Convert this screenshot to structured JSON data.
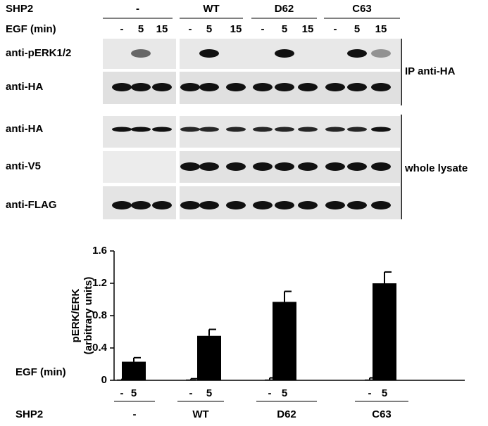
{
  "blot": {
    "group_label": "SHP2",
    "groups": [
      "-",
      "WT",
      "D62",
      "C63"
    ],
    "time_label": "EGF (min)",
    "times": [
      "-",
      "5",
      "15",
      "-",
      "5",
      "15",
      "-",
      "5",
      "15",
      "-",
      "5",
      "15"
    ],
    "rows": [
      "anti-pERK1/2",
      "anti-HA",
      "anti-HA",
      "anti-V5",
      "anti-FLAG"
    ],
    "side_labels": [
      "IP anti-HA",
      "whole lysate"
    ]
  },
  "chart_data": {
    "type": "bar",
    "ylabel": [
      "pERK/ERK",
      "(arbitrary units)"
    ],
    "category_label": "EGF (min)",
    "categories": [
      "-",
      "5",
      "-",
      "5",
      "-",
      "5",
      "-",
      "5"
    ],
    "group_label": "SHP2",
    "groups": [
      "-",
      "WT",
      "D62",
      "C63"
    ],
    "values": [
      0.01,
      0.23,
      0.01,
      0.55,
      0.01,
      0.97,
      0.01,
      1.2
    ],
    "errors": [
      0.01,
      0.05,
      0.01,
      0.08,
      0.02,
      0.13,
      0.02,
      0.14
    ],
    "color": "#000000",
    "ylim": [
      0,
      1.6
    ],
    "yticks": [
      0,
      0.4,
      0.8,
      1.2,
      1.6
    ]
  }
}
